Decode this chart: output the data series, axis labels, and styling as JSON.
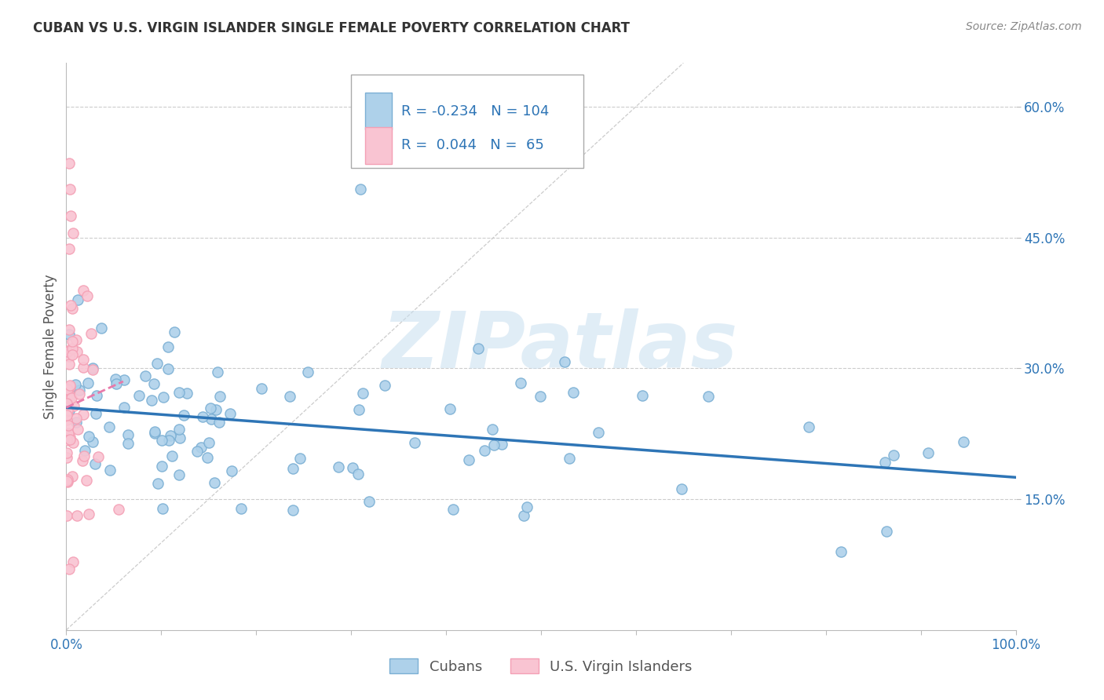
{
  "title": "CUBAN VS U.S. VIRGIN ISLANDER SINGLE FEMALE POVERTY CORRELATION CHART",
  "source": "Source: ZipAtlas.com",
  "ylabel": "Single Female Poverty",
  "watermark": "ZIPatlas",
  "xlim": [
    0,
    1
  ],
  "ylim": [
    0.0,
    0.65
  ],
  "yticks": [
    0.15,
    0.3,
    0.45,
    0.6
  ],
  "ytick_labels": [
    "15.0%",
    "30.0%",
    "45.0%",
    "60.0%"
  ],
  "xticks": [
    0.0,
    0.1,
    0.2,
    0.3,
    0.4,
    0.5,
    0.6,
    0.7,
    0.8,
    0.9,
    1.0
  ],
  "xtick_labels": [
    "0.0%",
    "",
    "",
    "",
    "",
    "",
    "",
    "",
    "",
    "",
    "100.0%"
  ],
  "blue_color": "#7BAFD4",
  "pink_color": "#F4A0B5",
  "blue_fill": "#AED1EA",
  "pink_fill": "#F9C4D2",
  "trend_blue": "#2E75B6",
  "trend_pink": "#E87AAA",
  "background": "#FFFFFF",
  "grid_color": "#CCCCCC",
  "title_color": "#333333",
  "source_color": "#888888",
  "axis_color": "#555555",
  "blue_trend_start_y": 0.255,
  "blue_trend_end_y": 0.175,
  "pink_trend_start_y": 0.255,
  "pink_trend_end_y": 0.285,
  "pink_trend_end_x": 0.06,
  "diag_line_end": 0.65
}
